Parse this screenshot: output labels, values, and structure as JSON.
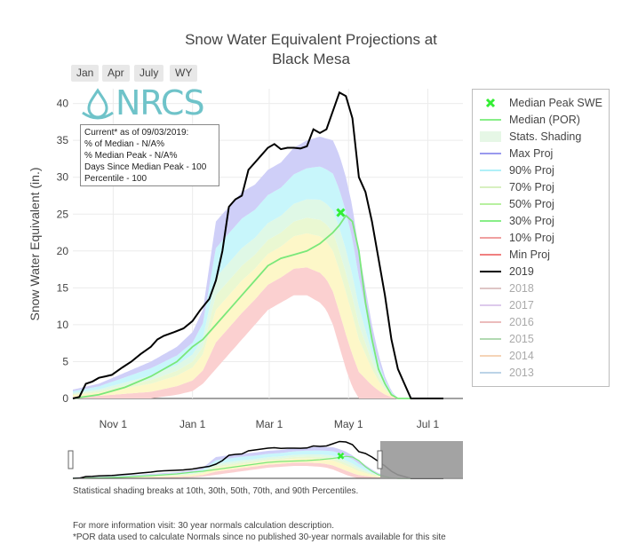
{
  "title_lines": [
    "Snow Water Equivalent Projections at",
    "Black Mesa"
  ],
  "range_buttons": [
    "Jan",
    "Apr",
    "July",
    "WY"
  ],
  "logo_text": "NRCS",
  "info_box": {
    "lines": [
      "Current* as of 09/03/2019:",
      "% of Median - N/A%",
      "% Median Peak - N/A%",
      "Days Since Median Peak - 100",
      "Percentile - 100"
    ]
  },
  "footnotes": {
    "shading": "Statistical shading breaks at 10th, 30th, 50th, 70th, and 90th Percentiles.",
    "info": "For more information visit: 30 year normals calculation description.",
    "por": "*POR data used to calculate Normals since no published 30-year normals available for this site"
  },
  "legend": [
    {
      "label": "Median Peak SWE",
      "color": "#33ee33",
      "kind": "marker",
      "visible": true
    },
    {
      "label": "Median (POR)",
      "color": "#88ee88",
      "kind": "line",
      "visible": true
    },
    {
      "label": "Stats. Shading",
      "color": "#e6f7e6",
      "kind": "fill",
      "visible": true
    },
    {
      "label": "Max Proj",
      "color": "#9999ee",
      "kind": "line",
      "visible": true
    },
    {
      "label": "90% Proj",
      "color": "#b0f0f8",
      "kind": "line",
      "visible": true
    },
    {
      "label": "70% Proj",
      "color": "#d8f0c0",
      "kind": "line",
      "visible": true
    },
    {
      "label": "50% Proj",
      "color": "#b8f0a0",
      "kind": "line",
      "visible": true
    },
    {
      "label": "30% Proj",
      "color": "#88ee88",
      "kind": "line",
      "visible": true
    },
    {
      "label": "10% Proj",
      "color": "#f0a0a0",
      "kind": "line",
      "visible": true
    },
    {
      "label": "Min Proj",
      "color": "#f08080",
      "kind": "line",
      "visible": true
    },
    {
      "label": "2019",
      "color": "#000000",
      "kind": "line",
      "visible": true
    },
    {
      "label": "2018",
      "color": "#c9a0a0",
      "kind": "line",
      "visible": false
    },
    {
      "label": "2017",
      "color": "#c8a8e0",
      "kind": "line",
      "visible": false
    },
    {
      "label": "2016",
      "color": "#e09090",
      "kind": "line",
      "visible": false
    },
    {
      "label": "2015",
      "color": "#80c080",
      "kind": "line",
      "visible": false
    },
    {
      "label": "2014",
      "color": "#f0b888",
      "kind": "line",
      "visible": false
    },
    {
      "label": "2013",
      "color": "#90b8d8",
      "kind": "line",
      "visible": false
    }
  ],
  "chart_data": {
    "type": "area",
    "title": "Snow Water Equivalent Projections at Black Mesa",
    "ylabel": "Snow Water Equivalent (in.)",
    "xlabel": "",
    "x_unit": "days since Oct 1 (water year)",
    "xlim": [
      0,
      300
    ],
    "ylim": [
      0,
      42
    ],
    "yticks": [
      0,
      5,
      10,
      15,
      20,
      25,
      30,
      35,
      40
    ],
    "xticks": [
      {
        "day": 31,
        "label": "Nov  1"
      },
      {
        "day": 92,
        "label": "Jan  1"
      },
      {
        "day": 151,
        "label": "Mar  1"
      },
      {
        "day": 212,
        "label": "May  1"
      },
      {
        "day": 273,
        "label": "Jul  1"
      }
    ],
    "grid": true,
    "series": [
      {
        "name": "2019",
        "color": "#000000",
        "x": [
          0,
          5,
          10,
          15,
          20,
          25,
          30,
          38,
          45,
          52,
          60,
          65,
          70,
          78,
          85,
          92,
          98,
          105,
          110,
          115,
          120,
          125,
          130,
          135,
          140,
          145,
          150,
          155,
          160,
          165,
          170,
          175,
          180,
          185,
          190,
          195,
          200,
          205,
          210,
          215,
          220,
          225,
          230,
          235,
          240,
          245,
          250,
          255,
          260,
          265,
          270,
          275,
          278,
          280,
          283,
          285
        ],
        "y": [
          0,
          0.2,
          2.0,
          2.3,
          2.8,
          3.0,
          3.2,
          4.2,
          5.0,
          6.0,
          7.0,
          8.0,
          8.5,
          9.0,
          9.5,
          10.5,
          12.0,
          13.5,
          16.0,
          20.0,
          26.0,
          27.0,
          27.5,
          31.0,
          32.0,
          33.0,
          34.0,
          34.5,
          33.8,
          34.0,
          34.0,
          33.9,
          34.2,
          36.5,
          36.0,
          36.5,
          39.0,
          41.5,
          41.0,
          38.0,
          30.0,
          28.0,
          24.0,
          19.0,
          14.0,
          8.0,
          4.0,
          2.0,
          0,
          0,
          0,
          0,
          0,
          0,
          0,
          0
        ]
      },
      {
        "name": "Median (POR)",
        "color": "#88ee88",
        "x": [
          0,
          20,
          40,
          60,
          80,
          92,
          100,
          110,
          120,
          130,
          140,
          150,
          160,
          170,
          180,
          190,
          200,
          205,
          210,
          215,
          220,
          225,
          230,
          235,
          240,
          245,
          250,
          255,
          260
        ],
        "y": [
          0,
          0.5,
          1.5,
          3.0,
          5.0,
          7.0,
          8.0,
          10.0,
          12.0,
          14.0,
          16.0,
          18.0,
          19.0,
          19.5,
          20.0,
          21.0,
          22.5,
          23.5,
          24.8,
          24.0,
          20.0,
          13.0,
          8.0,
          4.0,
          2.0,
          0.5,
          0,
          0,
          0
        ]
      },
      {
        "name": "Max Proj",
        "color": "#9999ee",
        "x": [
          0,
          20,
          40,
          60,
          80,
          92,
          100,
          110,
          120,
          130,
          140,
          150,
          160,
          170,
          180,
          190,
          200,
          205,
          210,
          215,
          220,
          225,
          230,
          235,
          240,
          245,
          250,
          255,
          260
        ],
        "y": [
          1.2,
          2.0,
          3.5,
          5.0,
          7.0,
          9.0,
          12.0,
          24.0,
          26.0,
          28.0,
          29.0,
          31.0,
          32.0,
          34.0,
          35.0,
          35.5,
          35.0,
          33.0,
          30.0,
          26.0,
          20.0,
          15.0,
          10.0,
          6.0,
          3.0,
          1.0,
          0,
          0,
          0
        ]
      },
      {
        "name": "Min Proj",
        "color": "#f08080",
        "x": [
          0,
          20,
          40,
          60,
          80,
          92,
          100,
          110,
          120,
          130,
          140,
          150,
          160,
          170,
          180,
          190,
          195,
          200,
          205,
          210,
          215,
          220
        ],
        "y": [
          0,
          0,
          0,
          0,
          0.5,
          1.0,
          2.0,
          4.0,
          6.0,
          8.0,
          10.0,
          12.0,
          13.0,
          14.0,
          14.0,
          13.0,
          12.0,
          10.0,
          7.0,
          4.0,
          1.5,
          0
        ]
      }
    ],
    "median_peak": {
      "x": 206,
      "y": 25.2,
      "label": "Median Peak SWE"
    }
  }
}
